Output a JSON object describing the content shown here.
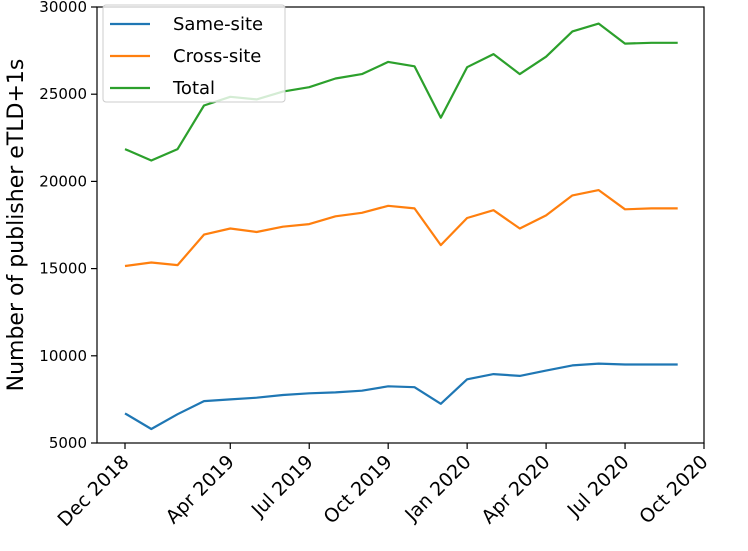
{
  "chart_data": {
    "type": "line",
    "title": "",
    "xlabel": "",
    "ylabel": "Number of publisher eTLD+1s",
    "x": [
      "2018-12",
      "2019-01",
      "2019-02",
      "2019-03",
      "2019-04",
      "2019-05",
      "2019-06",
      "2019-07",
      "2019-08",
      "2019-09",
      "2019-10",
      "2019-11",
      "2019-12",
      "2020-01",
      "2020-02",
      "2020-03",
      "2020-04",
      "2020-05",
      "2020-06",
      "2020-07",
      "2020-08",
      "2020-09"
    ],
    "x_ticks": [
      "2018-12",
      "2019-04",
      "2019-07",
      "2019-10",
      "2020-01",
      "2020-04",
      "2020-07",
      "2020-10"
    ],
    "x_tick_labels": [
      "Dec 2018",
      "Apr 2019",
      "Jul 2019",
      "Oct 2019",
      "Jan 2020",
      "Apr 2020",
      "Jul 2020",
      "Oct 2020"
    ],
    "xlim": [
      "2018-12",
      "2020-10"
    ],
    "ylim": [
      5000,
      30000
    ],
    "y_ticks": [
      5000,
      10000,
      15000,
      20000,
      25000,
      30000
    ],
    "y_tick_labels": [
      "5000",
      "10000",
      "15000",
      "20000",
      "25000",
      "30000"
    ],
    "grid": false,
    "legend_position": "upper-left",
    "series": [
      {
        "name": "Same-site",
        "color": "#1f77b4",
        "values": [
          6700,
          5800,
          6650,
          7400,
          7500,
          7600,
          7750,
          7850,
          7900,
          8000,
          8250,
          8200,
          7250,
          8650,
          8950,
          8850,
          9150,
          9450,
          9550,
          9500,
          9500,
          9500
        ]
      },
      {
        "name": "Cross-site",
        "color": "#ff7f0e",
        "values": [
          15150,
          15350,
          15200,
          16950,
          17300,
          17100,
          17400,
          17550,
          18000,
          18200,
          18600,
          18450,
          16350,
          17900,
          18350,
          17300,
          18050,
          19200,
          19500,
          18400,
          18450,
          18450
        ]
      },
      {
        "name": "Total",
        "color": "#2ca02c",
        "values": [
          21850,
          21200,
          21850,
          24350,
          24850,
          24700,
          25150,
          25400,
          25900,
          26150,
          26850,
          26600,
          23650,
          26550,
          27300,
          26150,
          27150,
          28600,
          29050,
          27900,
          27950,
          27950
        ]
      }
    ]
  }
}
